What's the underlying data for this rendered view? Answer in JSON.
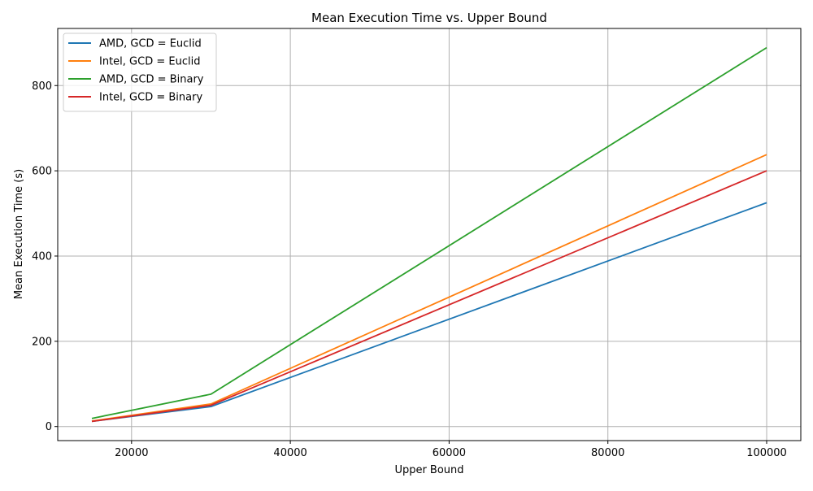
{
  "chart_data": {
    "type": "line",
    "title": "Mean Execution Time vs. Upper Bound",
    "xlabel": "Upper Bound",
    "ylabel": "Mean Execution Time (s)",
    "x": [
      15000,
      30000,
      100000
    ],
    "xlim": [
      10700,
      104300
    ],
    "ylim": [
      -33,
      934
    ],
    "xticks": [
      20000,
      40000,
      60000,
      80000,
      100000
    ],
    "yticks": [
      0,
      200,
      400,
      600,
      800
    ],
    "grid": true,
    "legend_position": "top-left",
    "series": [
      {
        "name": "AMD, GCD = Euclid",
        "color": "#1f77b4",
        "values": [
          12,
          47,
          525
        ]
      },
      {
        "name": "Intel, GCD = Euclid",
        "color": "#ff7f0e",
        "values": [
          13,
          53,
          638
        ]
      },
      {
        "name": "AMD, GCD = Binary",
        "color": "#2ca02c",
        "values": [
          19,
          76,
          889
        ]
      },
      {
        "name": "Intel, GCD = Binary",
        "color": "#d62728",
        "values": [
          12,
          50,
          600
        ]
      }
    ]
  }
}
